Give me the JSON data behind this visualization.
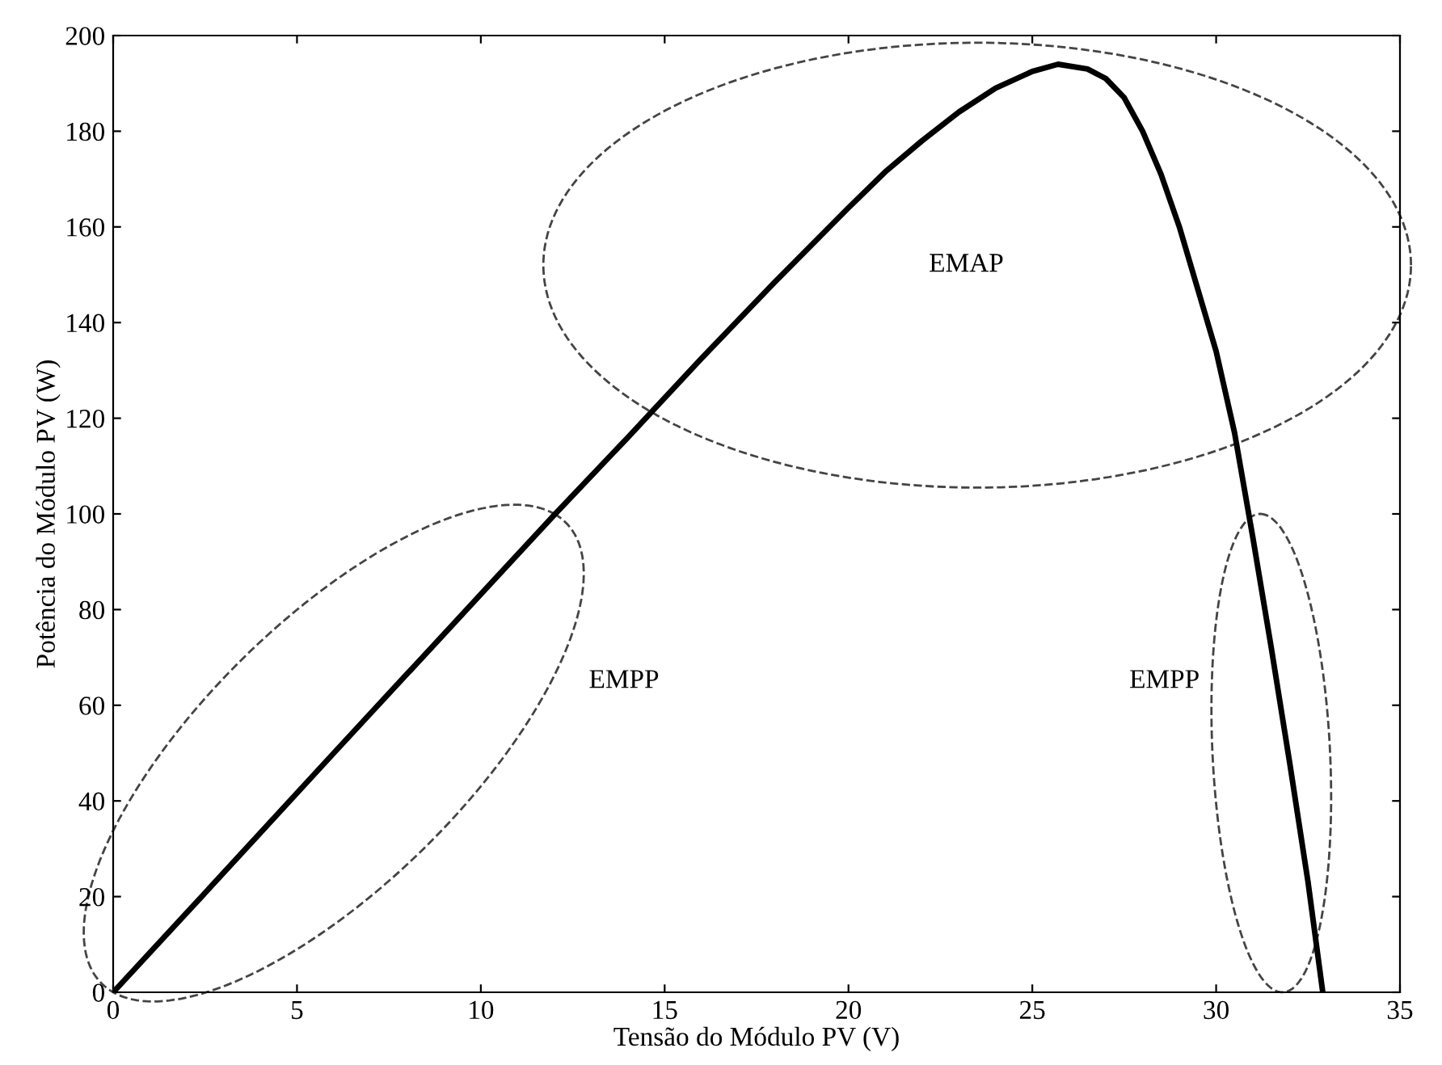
{
  "chart_data": {
    "type": "line",
    "xlabel": "Tensão do Módulo PV (V)",
    "ylabel": "Potência do Módulo PV (W)",
    "xlim": [
      0,
      35
    ],
    "ylim": [
      0,
      200
    ],
    "xticks": [
      0,
      5,
      10,
      15,
      20,
      25,
      30,
      35
    ],
    "yticks": [
      0,
      20,
      40,
      60,
      80,
      100,
      120,
      140,
      160,
      180,
      200
    ],
    "grid": false,
    "legend": false,
    "line_style": "solid",
    "marker": "none",
    "series": [
      {
        "color": "#000000",
        "x": [
          0,
          2,
          4,
          6,
          8,
          10,
          12,
          14,
          16,
          18,
          20,
          21,
          22,
          23,
          24,
          25,
          25.7,
          26.5,
          27,
          27.5,
          28,
          28.5,
          29,
          29.5,
          30,
          30.5,
          31,
          31.5,
          32,
          32.5,
          32.9
        ],
        "values": [
          0,
          16.6,
          33.3,
          50,
          66.6,
          83.2,
          99.8,
          116,
          132.5,
          148.5,
          164,
          171.5,
          178,
          184,
          189,
          192.5,
          194,
          193,
          191,
          187,
          180,
          171,
          160,
          147,
          134,
          117,
          95,
          72,
          48,
          23,
          0
        ]
      }
    ],
    "annotations": [
      "EMAP",
      "EMPP",
      "EMPP"
    ]
  }
}
